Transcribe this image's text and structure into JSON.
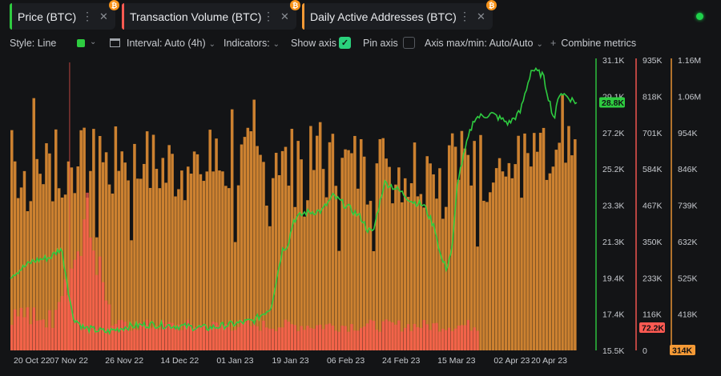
{
  "tabs": [
    {
      "label": "Price (BTC)",
      "color": "#2ecc40"
    },
    {
      "label": "Transaction Volume (BTC)",
      "color": "#ff5a52"
    },
    {
      "label": "Daily Active Addresses (BTC)",
      "color": "#f59a36"
    }
  ],
  "tab_icons": {
    "menu": "more-vertical-icon",
    "close": "close-icon",
    "badge": "bitcoin-icon"
  },
  "toolbar": {
    "style": "Style: Line",
    "interval": "Interval: Auto (4h)",
    "indicators": "Indicators:",
    "show_axis": "Show axis",
    "pin_axis": "Pin axis",
    "axis_maxmin": "Axis max/min: Auto/Auto",
    "combine": "Combine metrics"
  },
  "chart_data": {
    "type": "line",
    "x_labels": [
      "20 Oct 22",
      "07 Nov 22",
      "26 Nov 22",
      "14 Dec 22",
      "01 Jan 23",
      "19 Jan 23",
      "06 Feb 23",
      "24 Feb 23",
      "15 Mar 23",
      "02 Apr 23",
      "20 Apr 23"
    ],
    "axes": [
      {
        "name": "Price (BTC)",
        "color": "#2ecc40",
        "ticks": [
          "31.1K",
          "29.1K",
          "27.2K",
          "25.2K",
          "23.3K",
          "21.3K",
          "19.4K",
          "17.4K",
          "15.5K"
        ],
        "range": [
          15500,
          31100
        ],
        "current": "28.8K"
      },
      {
        "name": "Transaction Volume (BTC)",
        "color": "#ff5a52",
        "ticks": [
          "935K",
          "818K",
          "701K",
          "584K",
          "467K",
          "350K",
          "233K",
          "116K",
          "0"
        ],
        "range": [
          0,
          935000
        ],
        "current": "72.2K"
      },
      {
        "name": "Daily Active Addresses (BTC)",
        "color": "#f59a36",
        "ticks": [
          "1.16M",
          "1.06M",
          "954K",
          "846K",
          "739K",
          "632K",
          "525K",
          "418K",
          ""
        ],
        "range": [
          314000,
          1160000
        ],
        "current": "314K"
      }
    ],
    "series": [
      {
        "name": "Price (BTC)",
        "color": "#2ecc40",
        "keypoints": [
          [
            0,
            19500
          ],
          [
            0.04,
            20300
          ],
          [
            0.07,
            20500
          ],
          [
            0.09,
            21000
          ],
          [
            0.1,
            19200
          ],
          [
            0.11,
            17300
          ],
          [
            0.13,
            16700
          ],
          [
            0.17,
            16500
          ],
          [
            0.21,
            16800
          ],
          [
            0.25,
            16900
          ],
          [
            0.3,
            16800
          ],
          [
            0.35,
            16700
          ],
          [
            0.39,
            16900
          ],
          [
            0.43,
            17100
          ],
          [
            0.46,
            17800
          ],
          [
            0.48,
            20900
          ],
          [
            0.49,
            21200
          ],
          [
            0.5,
            22500
          ],
          [
            0.52,
            22900
          ],
          [
            0.55,
            23000
          ],
          [
            0.57,
            23800
          ],
          [
            0.6,
            23100
          ],
          [
            0.62,
            22600
          ],
          [
            0.63,
            22000
          ],
          [
            0.64,
            21800
          ],
          [
            0.66,
            24500
          ],
          [
            0.67,
            24400
          ],
          [
            0.69,
            24000
          ],
          [
            0.71,
            23500
          ],
          [
            0.73,
            23300
          ],
          [
            0.75,
            22000
          ],
          [
            0.76,
            20500
          ],
          [
            0.77,
            19900
          ],
          [
            0.78,
            21000
          ],
          [
            0.79,
            24700
          ],
          [
            0.81,
            27100
          ],
          [
            0.82,
            28000
          ],
          [
            0.85,
            28200
          ],
          [
            0.88,
            27700
          ],
          [
            0.9,
            28300
          ],
          [
            0.92,
            30600
          ],
          [
            0.94,
            30300
          ],
          [
            0.96,
            27900
          ],
          [
            0.97,
            29400
          ],
          [
            1.0,
            28800
          ]
        ]
      },
      {
        "name": "Daily Active Addresses (BTC)",
        "color": "#f59a36",
        "base": 850000,
        "spread": 120000
      },
      {
        "name": "Transaction Volume (BTC)",
        "color": "#ff5a52",
        "base": 60000,
        "spread": 40000,
        "spike": {
          "x": 0.13,
          "value": 560000
        }
      }
    ]
  }
}
